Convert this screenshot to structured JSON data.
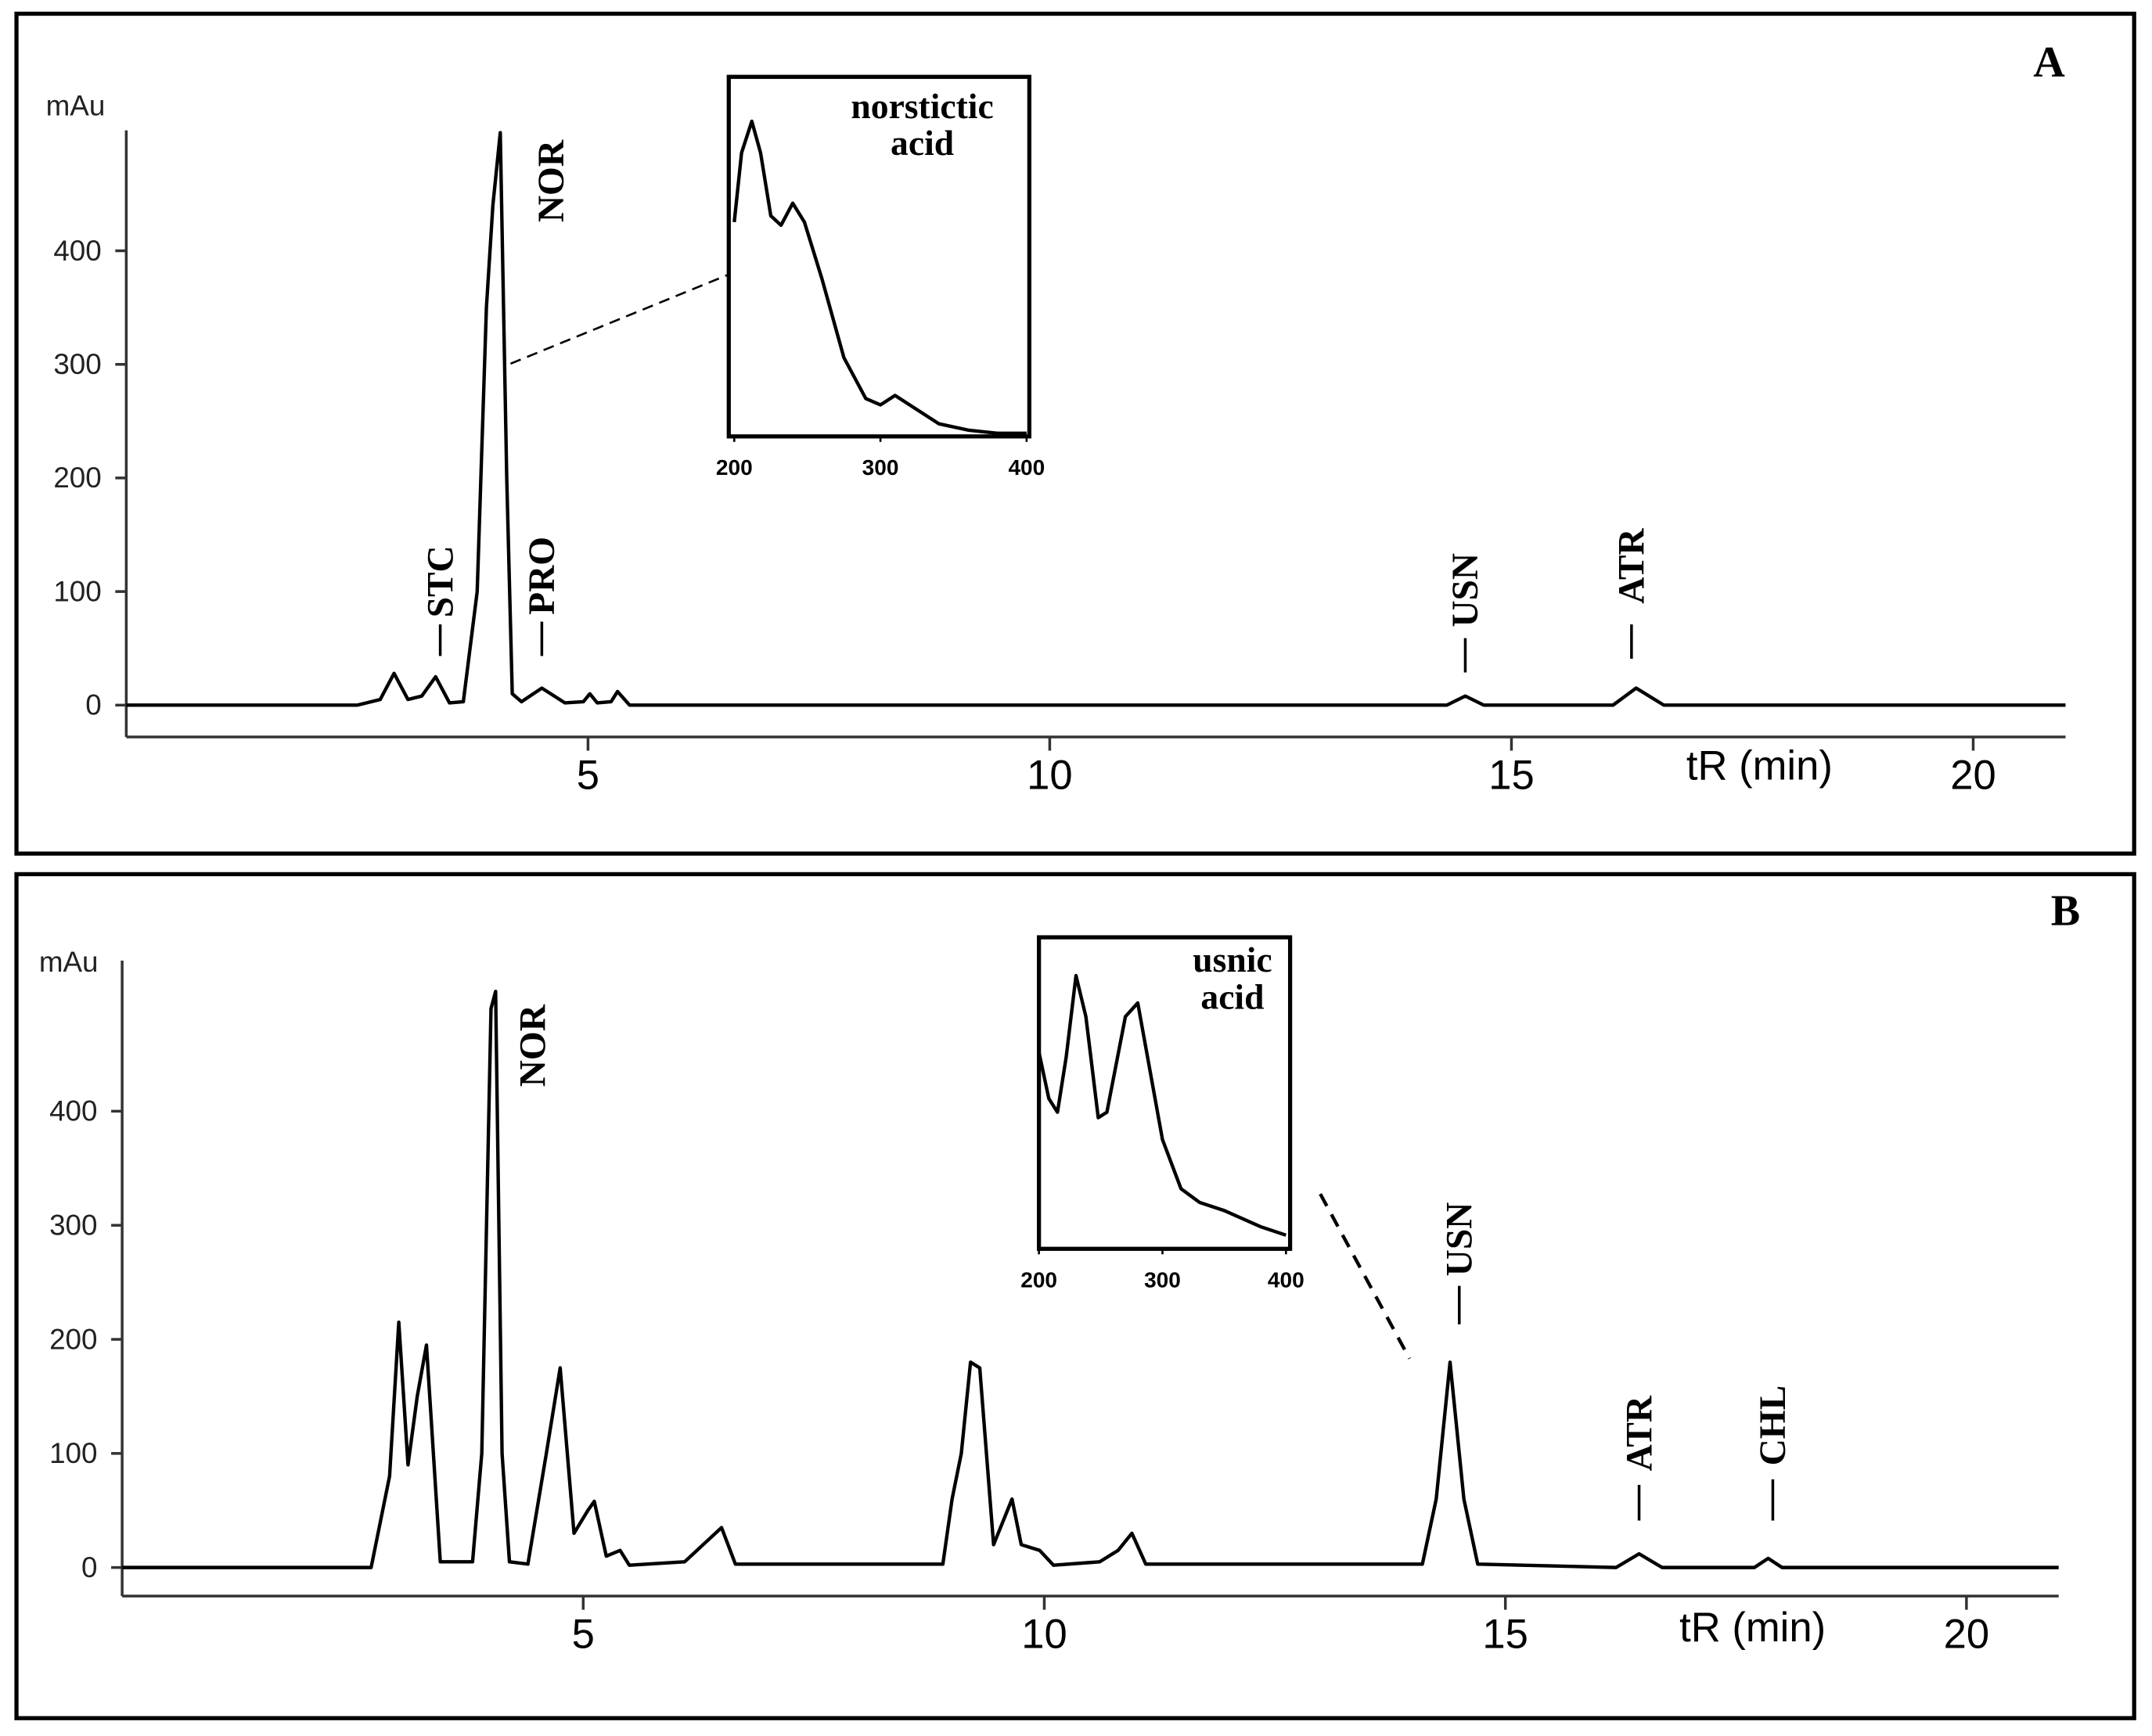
{
  "chart_data": [
    {
      "type": "line",
      "title": "A",
      "ylabel": "mAu",
      "xlabel": "tR (min)",
      "xlim": [
        0,
        21
      ],
      "ylim": [
        -28,
        506
      ],
      "xticks": [
        5,
        10,
        15,
        20
      ],
      "yticks": [
        0,
        100,
        200,
        300,
        400
      ],
      "x": [
        0,
        2.5,
        2.75,
        2.9,
        3.05,
        3.2,
        3.35,
        3.5,
        3.65,
        3.8,
        3.9,
        3.97,
        4.05,
        4.12,
        4.18,
        4.28,
        4.5,
        4.75,
        4.95,
        5.02,
        5.1,
        5.25,
        5.32,
        5.45,
        14.3,
        14.5,
        14.7,
        16.1,
        16.35,
        16.65,
        21
      ],
      "series": [
        {
          "color": "#000000",
          "values": [
            0,
            0,
            5,
            28,
            5,
            8,
            25,
            2,
            3,
            100,
            350,
            440,
            504,
            200,
            10,
            3,
            15,
            2,
            3,
            10,
            2,
            3,
            12,
            0,
            0,
            8,
            0,
            0,
            15,
            0,
            0
          ]
        }
      ],
      "annotations": [
        {
          "label": "STC",
          "x": 3.4
        },
        {
          "label": "NOR",
          "x": 4.6
        },
        {
          "label": "PRO",
          "x": 4.5
        },
        {
          "label": "USN",
          "x": 14.5
        },
        {
          "label": "ATR",
          "x": 16.3
        }
      ]
    },
    {
      "type": "line",
      "title": "B",
      "ylabel": "mAu",
      "xlabel": "tR (min)",
      "xlim": [
        0,
        21
      ],
      "ylim": [
        -25,
        532
      ],
      "xticks": [
        5,
        10,
        15,
        20
      ],
      "yticks": [
        0,
        100,
        200,
        300,
        400
      ],
      "x": [
        0,
        2.7,
        2.9,
        3.0,
        3.1,
        3.2,
        3.3,
        3.45,
        3.8,
        3.9,
        4.0,
        4.05,
        4.12,
        4.2,
        4.4,
        4.6,
        4.75,
        4.9,
        5.05,
        5.12,
        5.25,
        5.4,
        5.5,
        6.1,
        6.3,
        6.5,
        6.65,
        8.9,
        9.0,
        9.1,
        9.2,
        9.3,
        9.45,
        9.65,
        9.75,
        9.95,
        10.1,
        10.6,
        10.8,
        10.95,
        11.1,
        14.1,
        14.25,
        14.4,
        14.55,
        14.7,
        16.2,
        16.45,
        16.7,
        17.7,
        17.85,
        18.0,
        21
      ],
      "series": [
        {
          "color": "#000000",
          "values": [
            0,
            0,
            80,
            215,
            90,
            150,
            195,
            5,
            5,
            100,
            490,
            505,
            100,
            5,
            3,
            100,
            175,
            30,
            50,
            58,
            10,
            15,
            2,
            5,
            20,
            35,
            3,
            3,
            60,
            100,
            180,
            175,
            20,
            60,
            20,
            15,
            2,
            5,
            15,
            30,
            3,
            3,
            60,
            180,
            60,
            3,
            0,
            12,
            0,
            0,
            8,
            0,
            0
          ]
        }
      ],
      "annotations": [
        {
          "label": "NOR",
          "x": 4.45
        },
        {
          "label": "USN",
          "x": 14.5
        },
        {
          "label": "ATR",
          "x": 16.45
        },
        {
          "label": "CHL",
          "x": 17.9
        }
      ]
    },
    {
      "type": "line",
      "label_lines": [
        "norstictic",
        "acid"
      ],
      "xlim": [
        200,
        400
      ],
      "ylim": [
        0,
        1.08
      ],
      "xticks": [
        200,
        300,
        400
      ],
      "x": [
        200,
        205,
        212,
        218,
        225,
        232,
        240,
        248,
        260,
        275,
        290,
        300,
        310,
        320,
        340,
        360,
        380,
        400
      ],
      "series": [
        {
          "color": "#000000",
          "values": [
            0.68,
            0.9,
            1.0,
            0.9,
            0.7,
            0.67,
            0.74,
            0.68,
            0.5,
            0.25,
            0.12,
            0.1,
            0.13,
            0.1,
            0.04,
            0.02,
            0.01,
            0.01
          ]
        }
      ]
    },
    {
      "type": "line",
      "label_lines": [
        "usnic",
        "acid"
      ],
      "xlim": [
        200,
        400
      ],
      "ylim": [
        0,
        1.08
      ],
      "xticks": [
        200,
        300,
        400
      ],
      "x": [
        200,
        208,
        215,
        222,
        230,
        238,
        248,
        255,
        270,
        280,
        290,
        300,
        315,
        330,
        350,
        380,
        400
      ],
      "series": [
        {
          "color": "#000000",
          "values": [
            0.72,
            0.55,
            0.5,
            0.7,
            1.0,
            0.85,
            0.48,
            0.5,
            0.85,
            0.9,
            0.65,
            0.4,
            0.22,
            0.17,
            0.14,
            0.08,
            0.05
          ]
        }
      ]
    }
  ]
}
